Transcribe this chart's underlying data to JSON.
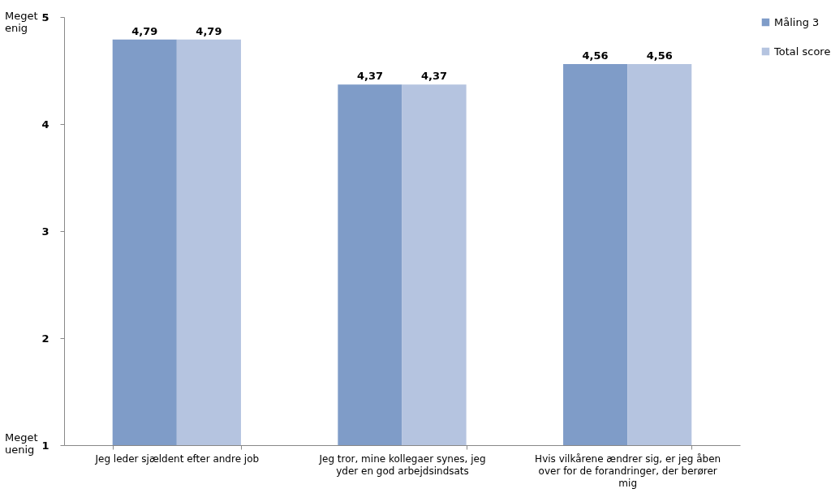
{
  "chart_data": {
    "type": "bar",
    "categories": [
      "Jeg leder sjældent efter andre job",
      "Jeg tror, mine kollegaer synes, jeg yder en god arbejdsindsats",
      "Hvis vilkårene ændrer sig, er jeg åben over for de forandringer, der berører mig"
    ],
    "series": [
      {
        "name": "Måling 3",
        "color": "#7f9cc8",
        "values": [
          4.79,
          4.37,
          4.56
        ],
        "value_labels": [
          "4,79",
          "4,37",
          "4,56"
        ]
      },
      {
        "name": "Total score",
        "color": "#b5c4e0",
        "values": [
          4.79,
          4.37,
          4.56
        ],
        "value_labels": [
          "4,79",
          "4,37",
          "4,56"
        ]
      }
    ],
    "ylim": [
      1,
      5
    ],
    "yticks": [
      1,
      2,
      3,
      4,
      5
    ],
    "annotations": [
      "Meget enig",
      "Meget uenig"
    ],
    "grid": false,
    "legend": "right"
  }
}
